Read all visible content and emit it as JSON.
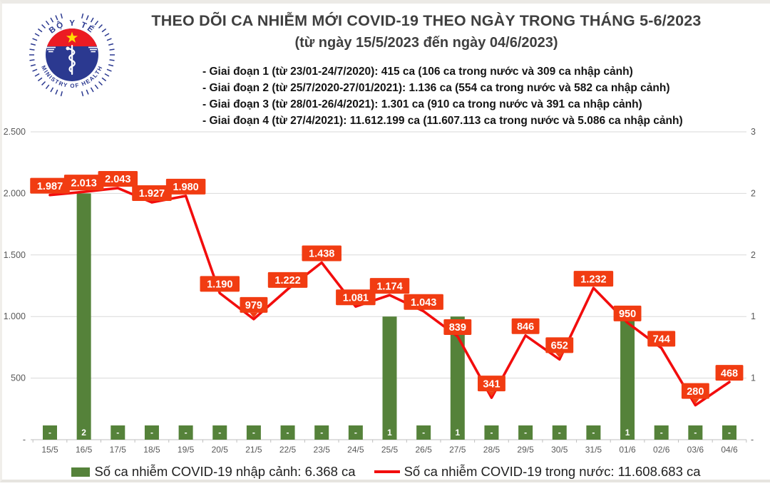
{
  "header": {
    "title": "THEO DÕI CA NHIỄM MỚI COVID-19 THEO NGÀY TRONG THÁNG 5-6/2023",
    "subtitle": "(từ ngày 15/5/2023 đến ngày 04/6/2023)",
    "phases": [
      "- Giai đoạn 1 (từ 23/01-24/7/2020): 415 ca (106 ca trong nước và 309 ca nhập cảnh)",
      "- Giai đoạn 2 (từ 25/7/2020-27/01/2021): 1.136 ca (554 ca trong nước và 582 ca nhập cảnh)",
      "- Giai đoạn 3 (từ 28/01-26/4/2021): 1.301 ca (910 ca trong nước và 391 ca nhập cảnh)",
      "- Giai đoạn 4 (từ 27/4/2021): 11.612.199 ca (11.607.113 ca trong nước và 5.086 ca nhập cảnh)"
    ],
    "logo": {
      "top_text": "BỘ Y TẾ",
      "bottom_text": "MINISTRY OF HEALTH"
    }
  },
  "chart_data": {
    "type": "line+bar combo",
    "categories": [
      "15/5",
      "16/5",
      "17/5",
      "18/5",
      "19/5",
      "20/5",
      "21/5",
      "22/5",
      "23/5",
      "24/5",
      "25/5",
      "26/5",
      "27/5",
      "28/5",
      "29/5",
      "30/5",
      "31/5",
      "01/6",
      "02/6",
      "03/6",
      "04/6"
    ],
    "series": [
      {
        "name": "Số ca nhiễm COVID-19 trong nước",
        "type": "line",
        "axis": "left",
        "color": "#F20D0D",
        "values": [
          1987,
          2013,
          2043,
          1927,
          1980,
          1190,
          979,
          1222,
          1438,
          1081,
          1174,
          1043,
          839,
          341,
          846,
          652,
          1232,
          950,
          744,
          280,
          468
        ]
      },
      {
        "name": "Số ca nhiễm COVID-19 nhập cảnh",
        "type": "bar",
        "axis": "right",
        "color": "#55823A",
        "values": [
          0,
          2,
          0,
          0,
          0,
          0,
          0,
          0,
          0,
          0,
          1,
          0,
          1,
          0,
          0,
          0,
          0,
          1,
          0,
          0,
          0
        ]
      }
    ],
    "point_labels": [
      "1.987",
      "2.013",
      "2.043",
      "1.927",
      "1.980",
      "1.190",
      "979",
      "1.222",
      "1.438",
      "1.081",
      "1.174",
      "1.043",
      "839",
      "341",
      "846",
      "652",
      "1.232",
      "950",
      "744",
      "280",
      "468"
    ],
    "bar_labels": [
      "-",
      "2",
      "-",
      "-",
      "-",
      "-",
      "-",
      "-",
      "-",
      "-",
      "1",
      "-",
      "1",
      "-",
      "-",
      "-",
      "-",
      "1",
      "-",
      "-",
      "-"
    ],
    "pointer_indices": [
      6,
      13,
      15,
      19
    ],
    "left_axis": {
      "min": 0,
      "max": 2500,
      "tick_labels": [
        "2.500",
        "2.000",
        "1.500",
        "1.000",
        "500",
        "-"
      ]
    },
    "right_axis": {
      "min": 0,
      "max": 2.5,
      "tick_labels": [
        "3",
        "2",
        "2",
        "1",
        "1",
        "-"
      ]
    },
    "grid": true,
    "label_bg": "#F13C12",
    "grid_color": "#D9D9D9",
    "axis_text_color": "#595959",
    "title": "THEO DÕI CA NHIỄM MỚI COVID-19 THEO NGÀY TRONG THÁNG 5-6/2023",
    "legend_position": "bottom"
  },
  "legend": {
    "bar_label": "Số ca nhiễm COVID-19 nhập cảnh: 6.368 ca",
    "line_label": "Số ca nhiễm COVID-19 trong nước: 11.608.683 ca"
  },
  "colors": {
    "bar_green": "#55823A",
    "line_red": "#F20D0D",
    "label_orange": "#F13C12",
    "logo_blue": "#2B3990",
    "logo_red": "#EC1B23",
    "star_yellow": "#FFDE00"
  }
}
